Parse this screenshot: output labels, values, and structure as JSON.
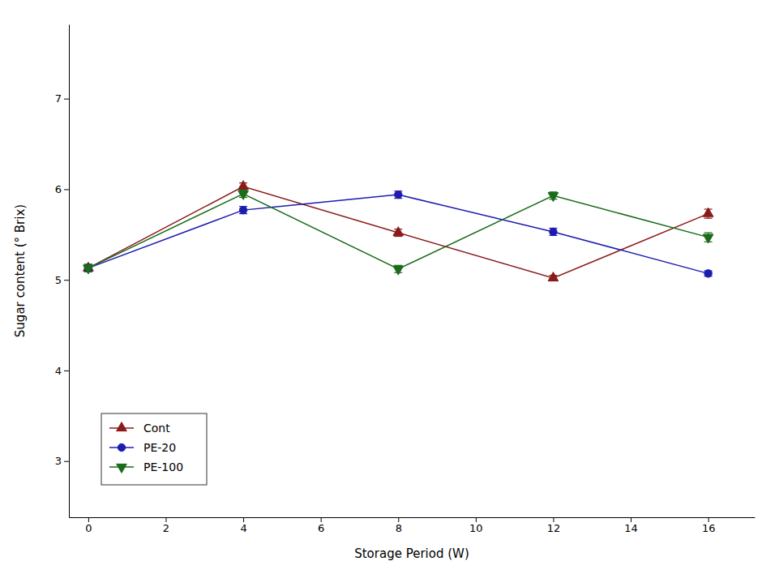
{
  "chart_data": {
    "type": "line",
    "xlabel": "Storage Period (W)",
    "ylabel": "Sugar content (° Brix)",
    "x": [
      0,
      4,
      8,
      12,
      16
    ],
    "series": [
      {
        "name": "Cont",
        "color": "#8B1A1A",
        "marker": "triangle-up",
        "values": [
          5.13,
          6.03,
          5.52,
          5.02,
          5.73
        ],
        "errors": [
          0.04,
          0.04,
          0.04,
          0.03,
          0.05
        ]
      },
      {
        "name": "PE-20",
        "color": "#1C1CB0",
        "marker": "circle",
        "values": [
          5.13,
          5.77,
          5.94,
          5.53,
          5.07
        ],
        "errors": [
          0.04,
          0.04,
          0.04,
          0.04,
          0.03
        ]
      },
      {
        "name": "PE-100",
        "color": "#1A6B1A",
        "marker": "triangle-down",
        "values": [
          5.13,
          5.95,
          5.12,
          5.93,
          5.47
        ],
        "errors": [
          0.04,
          0.04,
          0.04,
          0.04,
          0.05
        ]
      }
    ],
    "xlim": [
      -0.5,
      17.2
    ],
    "ylim": [
      2.38,
      7.82
    ],
    "xticks": [
      0,
      2,
      4,
      6,
      8,
      10,
      12,
      14,
      16
    ],
    "yticks": [
      3,
      4,
      5,
      6,
      7
    ],
    "grid": false,
    "legend": "lower left"
  }
}
